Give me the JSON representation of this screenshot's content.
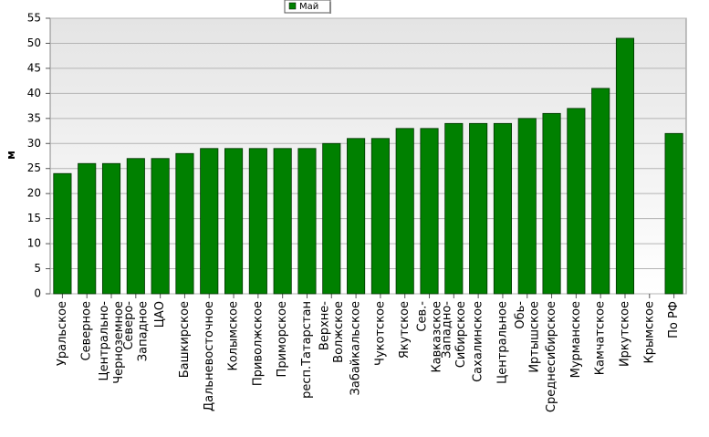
{
  "chart_data": {
    "type": "bar",
    "y_label": "м",
    "categories": [
      "Уральское",
      "Северное",
      "Центрально-Черноземное",
      "Северо-Западное",
      "ЦАО",
      "Башкирское",
      "Дальневосточное",
      "Колымское",
      "Приволжское",
      "Приморское",
      "респ.Татарстан",
      "Верхне-Волжское",
      "Забайкальское",
      "Чукотское",
      "Якутское",
      "Сев.-Кавказское",
      "Западно-Сибирское",
      "Сахалинское",
      "Центральное",
      "Обь-Иртышское",
      "Среднесибирское",
      "Мурманское",
      "Камчатское",
      "Иркутское",
      "Крымское",
      "По РФ"
    ],
    "series": [
      {
        "name": "Май",
        "color": "#008000",
        "values": [
          24,
          26,
          26,
          27,
          27,
          28,
          29,
          29,
          29,
          29,
          29,
          30,
          31,
          31,
          33,
          33,
          34,
          34,
          34,
          35,
          36,
          37,
          41,
          51,
          null,
          32
        ]
      }
    ],
    "ylim": [
      0,
      55
    ],
    "yticks": [
      0,
      5,
      10,
      15,
      20,
      25,
      30,
      35,
      40,
      45,
      50,
      55
    ],
    "grid": true,
    "legend": "top"
  }
}
